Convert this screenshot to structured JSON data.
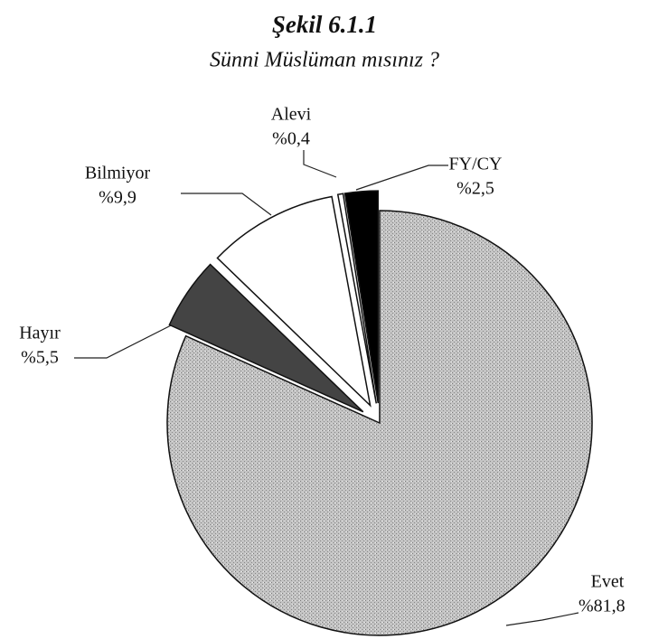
{
  "chart_data": {
    "type": "pie",
    "title": "Şekil 6.1.1",
    "subtitle": "Sünni Müslüman mısınız ?",
    "categories": [
      "Evet",
      "Hayır",
      "Bilmiyor",
      "Alevi",
      "FY/CY"
    ],
    "values": [
      81.8,
      5.5,
      9.9,
      0.4,
      2.5
    ],
    "value_labels": [
      "%81,8",
      "%5,5",
      "%9,9",
      "%0,4",
      "%2,5"
    ],
    "colors": [
      "#b9b9b9",
      "#444444",
      "#ffffff",
      "#ffffff",
      "#000000"
    ]
  }
}
